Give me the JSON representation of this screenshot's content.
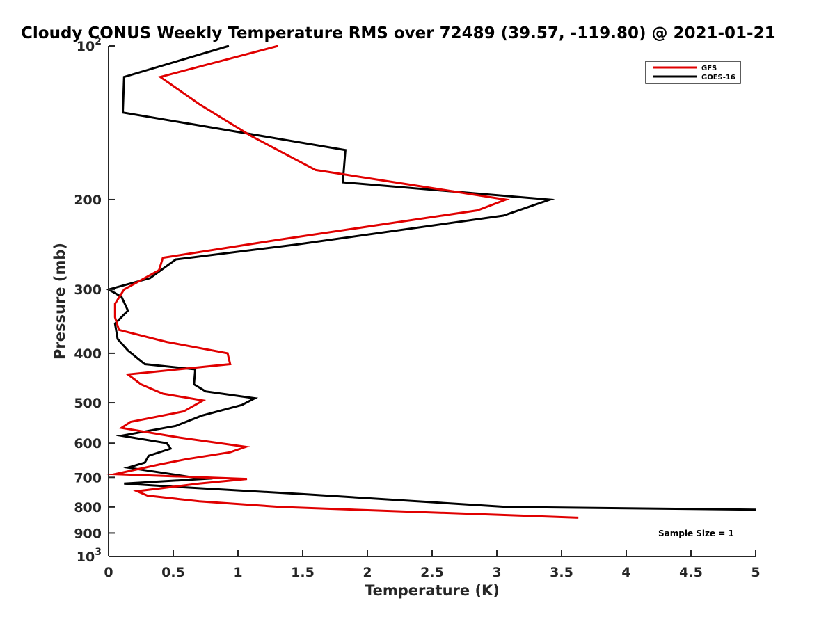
{
  "chart_data": {
    "type": "line",
    "title": "Cloudy CONUS Weekly Temperature RMS over 72489 (39.57, -119.80) @ 2021-01-21",
    "xlabel": "Temperature (K)",
    "ylabel": "Pressure (mb)",
    "xlim": [
      0,
      5
    ],
    "ylim": [
      100,
      1000
    ],
    "y_scale": "log",
    "y_reversed": true,
    "x_ticks": [
      "0",
      "0.5",
      "1",
      "1.5",
      "2",
      "2.5",
      "3",
      "3.5",
      "4",
      "4.5",
      "5"
    ],
    "y_ticks": [
      {
        "value": 100,
        "base": "10",
        "exp": "2"
      },
      {
        "value": 200,
        "label": "200"
      },
      {
        "value": 300,
        "label": "300"
      },
      {
        "value": 400,
        "label": "400"
      },
      {
        "value": 500,
        "label": "500"
      },
      {
        "value": 600,
        "label": "600"
      },
      {
        "value": 700,
        "label": "700"
      },
      {
        "value": 800,
        "label": "800"
      },
      {
        "value": 900,
        "label": "900"
      },
      {
        "value": 1000,
        "base": "10",
        "exp": "3"
      }
    ],
    "grid": false,
    "legend_position": "top-right",
    "annotation": "Sample Size = 1",
    "series": [
      {
        "name": "GFS",
        "color": "#e00000",
        "points": [
          [
            1.31,
            100
          ],
          [
            0.4,
            115
          ],
          [
            0.7,
            130
          ],
          [
            1.1,
            150
          ],
          [
            1.6,
            175
          ],
          [
            3.07,
            200
          ],
          [
            2.85,
            210
          ],
          [
            1.3,
            240
          ],
          [
            0.42,
            260
          ],
          [
            0.39,
            275
          ],
          [
            0.12,
            300
          ],
          [
            0.05,
            320
          ],
          [
            0.05,
            340
          ],
          [
            0.08,
            360
          ],
          [
            0.45,
            380
          ],
          [
            0.92,
            400
          ],
          [
            0.94,
            420
          ],
          [
            0.15,
            440
          ],
          [
            0.25,
            460
          ],
          [
            0.42,
            480
          ],
          [
            0.73,
            495
          ],
          [
            0.58,
            520
          ],
          [
            0.17,
            545
          ],
          [
            0.1,
            560
          ],
          [
            0.55,
            585
          ],
          [
            1.06,
            610
          ],
          [
            0.94,
            625
          ],
          [
            0.6,
            645
          ],
          [
            0.4,
            660
          ],
          [
            0.05,
            690
          ],
          [
            1.07,
            705
          ],
          [
            0.7,
            720
          ],
          [
            0.22,
            745
          ],
          [
            0.3,
            760
          ],
          [
            0.7,
            780
          ],
          [
            1.33,
            800
          ],
          [
            3.63,
            840
          ]
        ]
      },
      {
        "name": "GOES-16",
        "color": "#000000",
        "points": [
          [
            0.93,
            100
          ],
          [
            0.12,
            115
          ],
          [
            0.11,
            135
          ],
          [
            1.83,
            160
          ],
          [
            1.81,
            185
          ],
          [
            3.41,
            200
          ],
          [
            3.05,
            215
          ],
          [
            1.45,
            245
          ],
          [
            0.52,
            262
          ],
          [
            0.32,
            285
          ],
          [
            0.0,
            300
          ],
          [
            0.1,
            310
          ],
          [
            0.15,
            330
          ],
          [
            0.05,
            350
          ],
          [
            0.07,
            375
          ],
          [
            0.15,
            395
          ],
          [
            0.28,
            420
          ],
          [
            0.67,
            430
          ],
          [
            0.66,
            460
          ],
          [
            0.75,
            475
          ],
          [
            1.13,
            490
          ],
          [
            1.03,
            505
          ],
          [
            0.72,
            530
          ],
          [
            0.52,
            555
          ],
          [
            0.1,
            580
          ],
          [
            0.45,
            600
          ],
          [
            0.48,
            615
          ],
          [
            0.31,
            635
          ],
          [
            0.28,
            655
          ],
          [
            0.15,
            670
          ],
          [
            0.73,
            705
          ],
          [
            0.12,
            720
          ],
          [
            0.5,
            730
          ],
          [
            1.5,
            755
          ],
          [
            3.08,
            800
          ],
          [
            5.0,
            810
          ]
        ]
      }
    ]
  }
}
